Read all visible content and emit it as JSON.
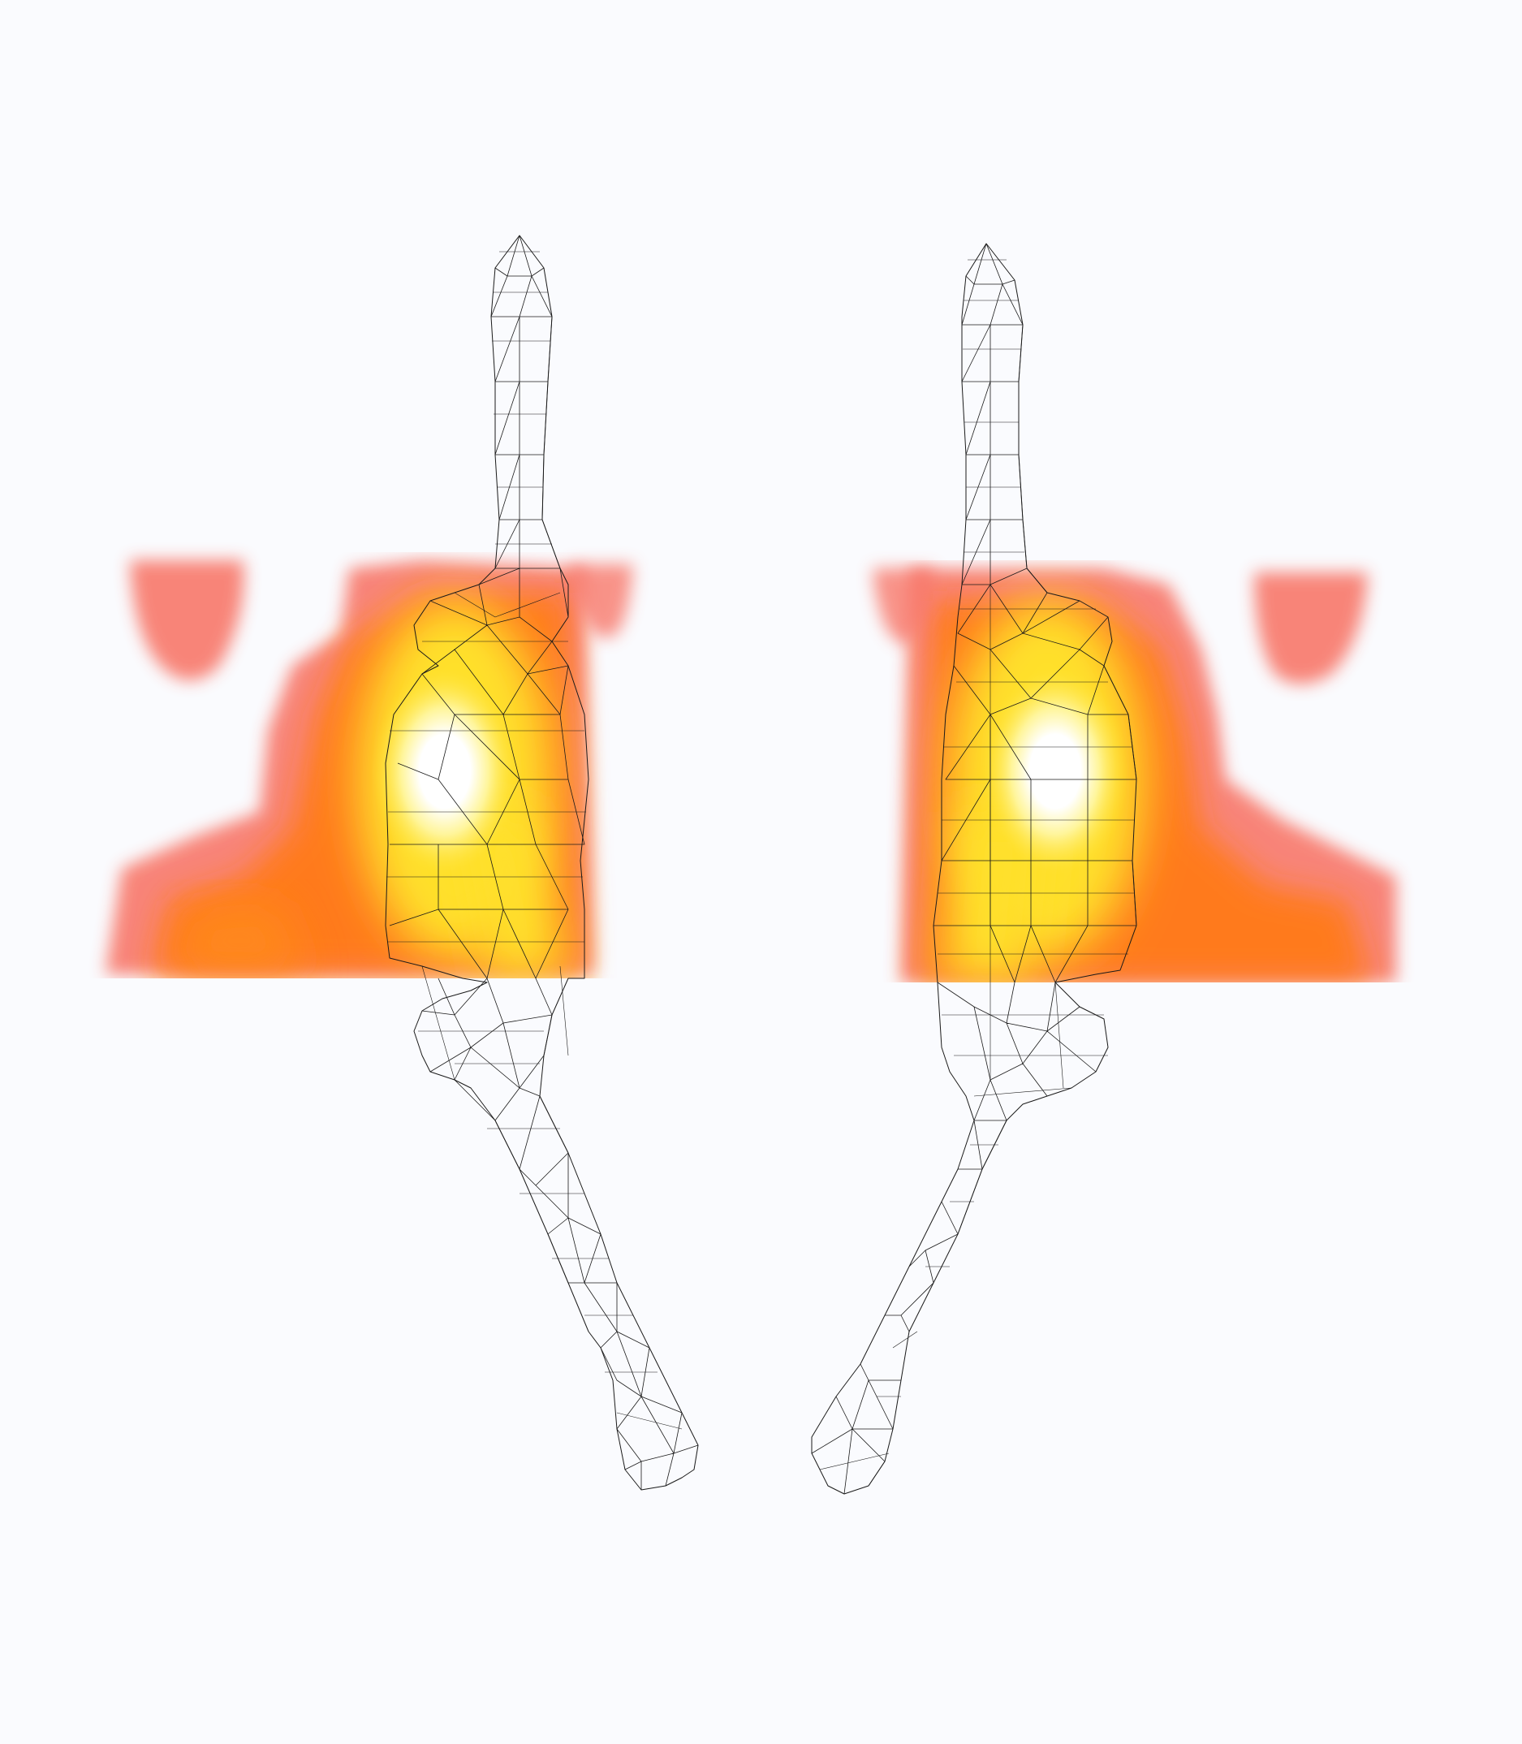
{
  "scene": {
    "description_visible_text": "",
    "views": [
      {
        "id": "left-view",
        "orientation": "mirrored-left"
      },
      {
        "id": "right-view",
        "orientation": "mirrored-right"
      }
    ],
    "colors": {
      "background": "#fafbfe",
      "heat_low": "#f8786a",
      "heat_mid": "#ff7a1a",
      "heat_high": "#ffe02a",
      "heat_peak": "#ffffff",
      "wireframe": "#1a1a1a"
    },
    "icons": [
      "heatmap-overlay",
      "wireframe-mesh"
    ]
  }
}
